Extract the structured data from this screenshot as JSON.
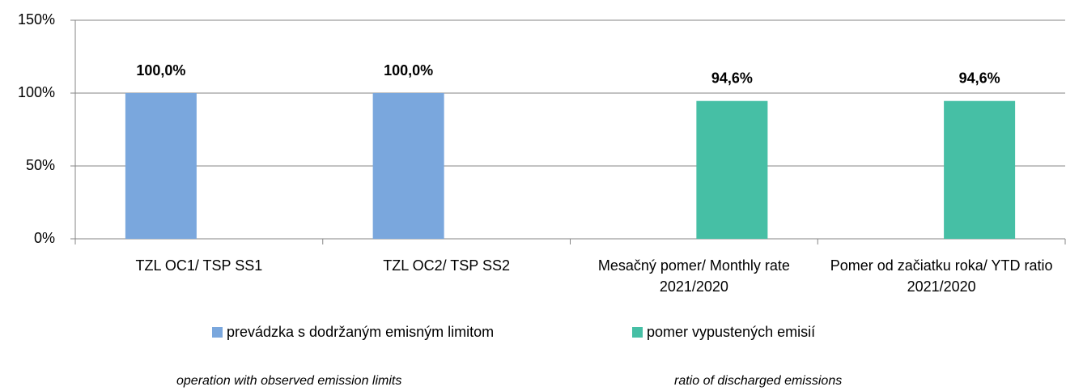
{
  "chart_data": {
    "type": "bar",
    "categories": [
      "TZL OC1/ TSP SS1",
      "TZL OC2/ TSP SS2",
      "Mesačný pomer/ Monthly rate 2021/2020",
      "Pomer od začiatku roka/ YTD ratio 2021/2020"
    ],
    "series": [
      {
        "name": "prevádzka s dodržaným emisným limitom",
        "description": "operation with observed emission limits",
        "color": "#7aa7dd",
        "values": [
          100,
          100,
          null,
          null
        ],
        "value_labels": [
          "100,0%",
          "100,0%",
          null,
          null
        ]
      },
      {
        "name": "pomer vypustených emisií",
        "description": "ratio of discharged emissions",
        "color": "#46bfa5",
        "values": [
          null,
          null,
          94.6,
          94.6
        ],
        "value_labels": [
          null,
          null,
          "94,6%",
          "94,6%"
        ]
      }
    ],
    "ylim": [
      0,
      150
    ],
    "yticks": [
      {
        "value": 0,
        "label": "0%"
      },
      {
        "value": 50,
        "label": "50%"
      },
      {
        "value": 100,
        "label": "100%"
      },
      {
        "value": 150,
        "label": "150%"
      }
    ],
    "grid": true,
    "legend": "bottom"
  }
}
